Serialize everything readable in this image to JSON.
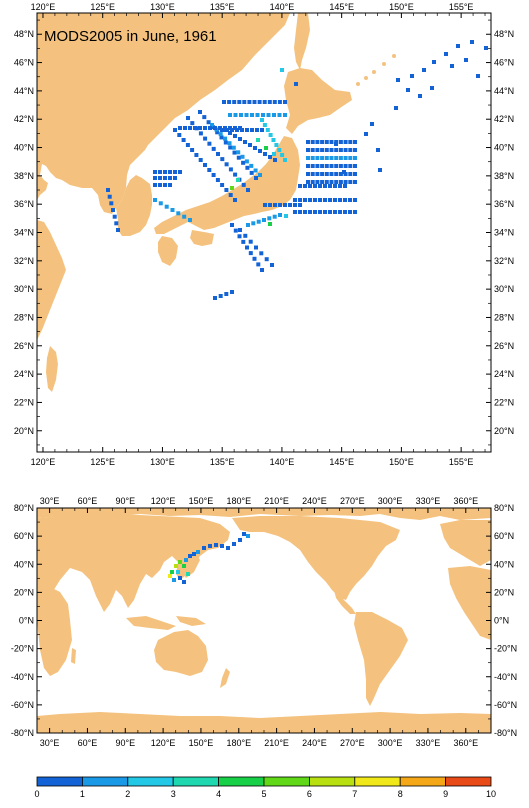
{
  "top_map": {
    "title": "MODS2005 in June, 1961",
    "lon_labels": [
      "120°E",
      "125°E",
      "130°E",
      "135°E",
      "140°E",
      "145°E",
      "150°E",
      "155°E"
    ],
    "lat_labels": [
      "20°N",
      "22°N",
      "24°N",
      "26°N",
      "28°N",
      "30°N",
      "32°N",
      "34°N",
      "36°N",
      "38°N",
      "40°N",
      "42°N",
      "44°N",
      "46°N",
      "48°N"
    ],
    "lon_range": [
      119.5,
      157.5
    ],
    "lat_range": [
      18.5,
      49.5
    ]
  },
  "bottom_map": {
    "lon_labels": [
      "30°E",
      "60°E",
      "90°E",
      "120°E",
      "150°E",
      "180°E",
      "210°E",
      "240°E",
      "270°E",
      "300°E",
      "330°E",
      "360°E"
    ],
    "lat_labels": [
      "80°N",
      "60°N",
      "40°N",
      "20°N",
      "0°N",
      "-20°N",
      "-40°N",
      "-60°N",
      "-80°N"
    ],
    "lon_range": [
      20,
      380
    ],
    "lat_range": [
      -80,
      80
    ]
  },
  "colorbar": {
    "labels": [
      "0",
      "1",
      "2",
      "3",
      "4",
      "5",
      "6",
      "7",
      "8",
      "9",
      "10"
    ],
    "colors": [
      "#1463d6",
      "#1a9ae6",
      "#22c8e6",
      "#20d8b0",
      "#18d048",
      "#60d818",
      "#b8e010",
      "#f0e818",
      "#f4a818",
      "#e84a18"
    ]
  },
  "colors": {
    "land": "#f4c27e",
    "ocean": "#ffffff",
    "frame": "#000000"
  }
}
